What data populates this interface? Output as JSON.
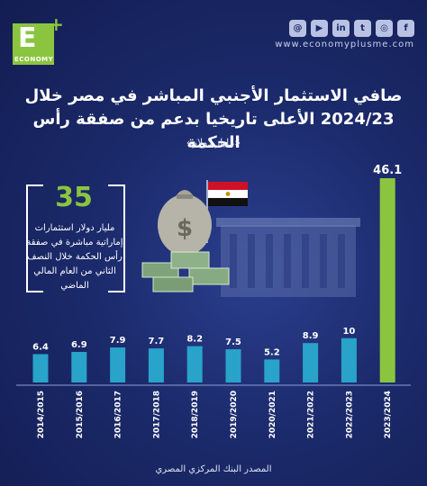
{
  "brand": {
    "logo_letter": "E",
    "logo_plus": "+",
    "logo_word": "ECONOMY",
    "website": "www.economyplusme.com"
  },
  "socials": [
    "f",
    "◎",
    "t",
    "in",
    "▶",
    "@"
  ],
  "icons": [
    "facebook-icon",
    "instagram-icon",
    "twitter-icon",
    "linkedin-icon",
    "youtube-icon",
    "threads-icon"
  ],
  "title": "صافي الاستثمار الأجنبي المباشر في مصر خلال 2024/23 الأعلى تاريخيا بدعم من صفقة رأس الحكمة",
  "unit": "«مليار دولار»",
  "callout": {
    "value": "35",
    "text": "مليار دولار استثمارات إماراتية مباشرة في صفقة رأس الحكمة خلال النصف الثاني من العام المالي الماضي"
  },
  "source": "المصدر البنك المركزي المصري",
  "colors": {
    "bar": "#29a3c9",
    "highlight_bar": "#8bc53f",
    "background": "#1b2a6b"
  },
  "chart_data": {
    "type": "bar",
    "categories": [
      "2014/2015",
      "2015/2016",
      "2016/2017",
      "2017/2018",
      "2018/2019",
      "2019/2020",
      "2020/2021",
      "2021/2022",
      "2022/2023",
      "2023/2024"
    ],
    "values": [
      6.4,
      6.9,
      7.9,
      7.7,
      8.2,
      7.5,
      5.2,
      8.9,
      10,
      46.1
    ],
    "value_labels": [
      "6.4",
      "6.9",
      "7.9",
      "7.7",
      "8.2",
      "7.5",
      "5.2",
      "8.9",
      "10",
      "46.1"
    ],
    "highlight_index": 9,
    "ylim": [
      0,
      50
    ],
    "grid": false
  }
}
